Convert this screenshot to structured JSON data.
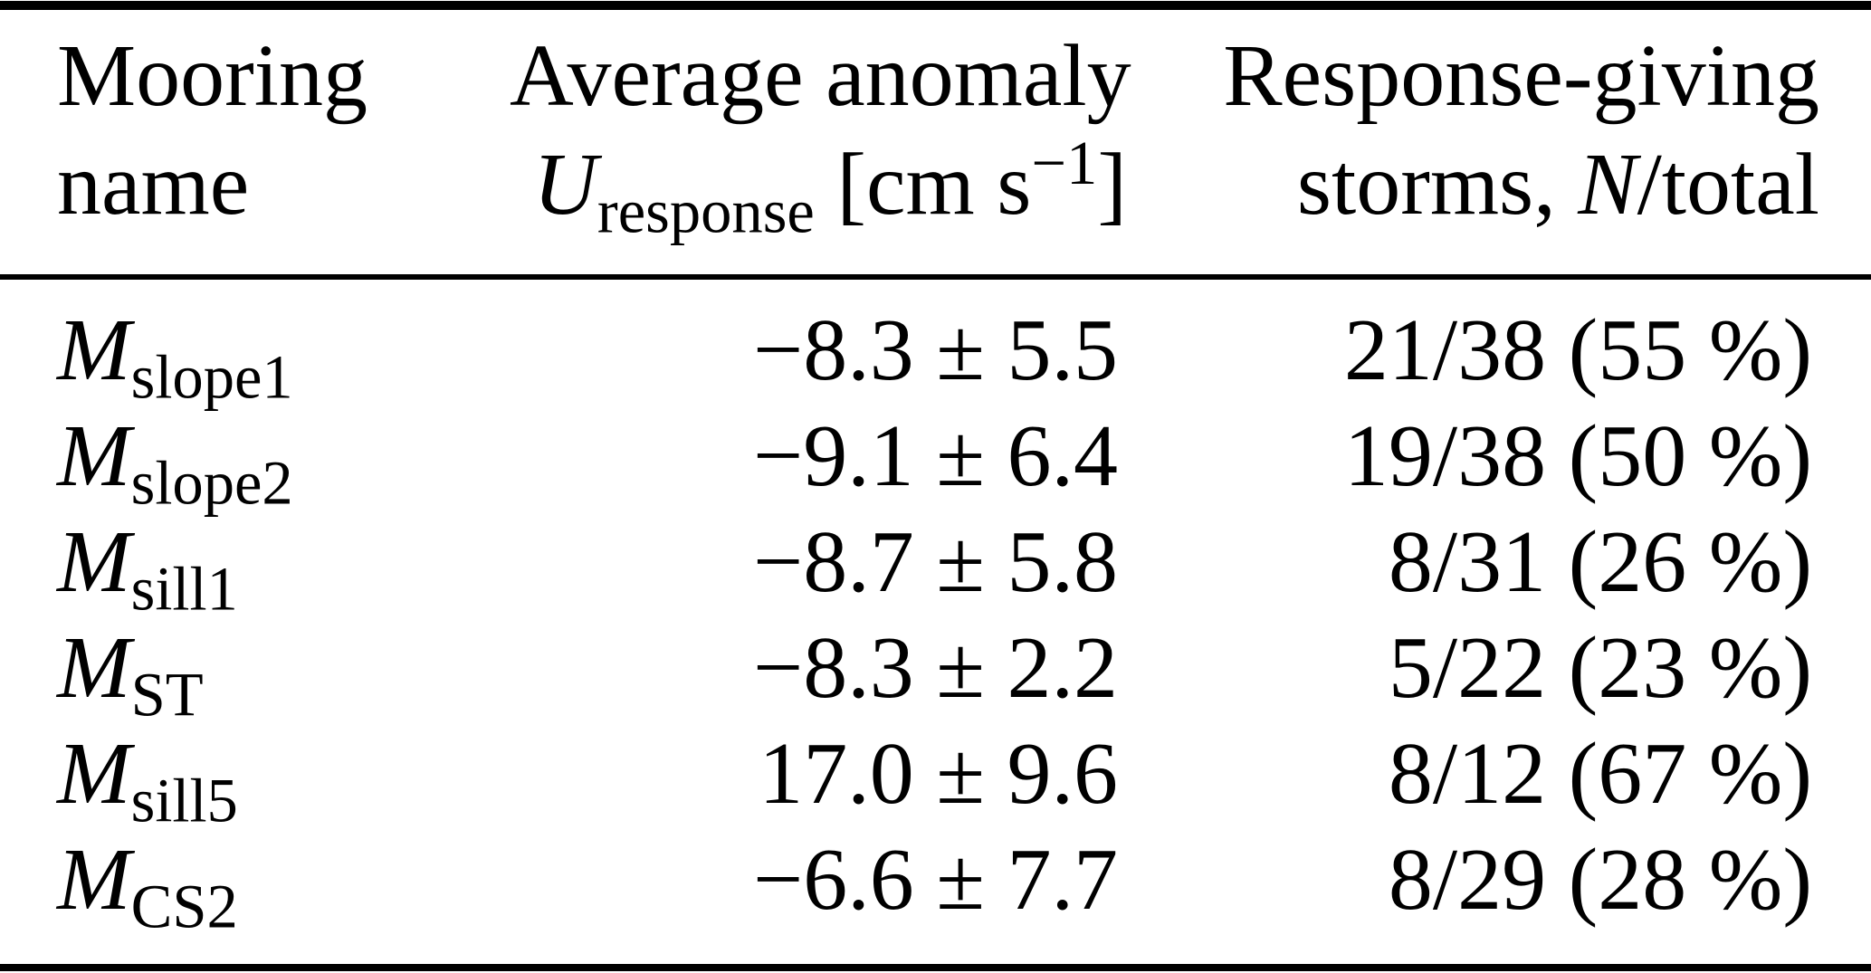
{
  "colors": {
    "text": "#000000",
    "background": "#ffffff",
    "rule": "#000000"
  },
  "header": {
    "col1": {
      "line1": "Mooring",
      "line2": "name"
    },
    "col2": {
      "line1": "Average anomaly",
      "u_symbol": "U",
      "u_subscript": "response",
      "unit_prefix": " [cm s",
      "unit_superscript": "−1",
      "unit_suffix": "]"
    },
    "col3": {
      "line1": "Response-giving",
      "line2_prefix": "storms, ",
      "n_symbol": "N",
      "line2_suffix": "/total"
    }
  },
  "table": {
    "rows": [
      {
        "symbol": "M",
        "sub": "slope1",
        "anomaly": "−8.3 ± 5.5",
        "storms": "21/38 (55 %)"
      },
      {
        "symbol": "M",
        "sub": "slope2",
        "anomaly": "−9.1 ± 6.4",
        "storms": "19/38 (50 %)"
      },
      {
        "symbol": "M",
        "sub": "sill1",
        "anomaly": "−8.7 ± 5.8",
        "storms": "8/31 (26 %)"
      },
      {
        "symbol": "M",
        "sub": "ST",
        "anomaly": "−8.3 ± 2.2",
        "storms": "5/22 (23 %)"
      },
      {
        "symbol": "M",
        "sub": "sill5",
        "anomaly": "17.0 ± 9.6",
        "storms": "8/12 (67 %)"
      },
      {
        "symbol": "M",
        "sub": "CS2",
        "anomaly": "−6.6 ± 7.7",
        "storms": "8/29 (28 %)"
      }
    ]
  },
  "chart_data": {
    "type": "table",
    "title": "",
    "headers": [
      "Mooring name",
      "Average anomaly U_response [cm s^−1]",
      "Response-giving storms, N/total"
    ],
    "rows": [
      [
        "M_slope1",
        "−8.3 ± 5.5",
        "21/38 (55 %)"
      ],
      [
        "M_slope2",
        "−9.1 ± 6.4",
        "19/38 (50 %)"
      ],
      [
        "M_sill1",
        "−8.7 ± 5.8",
        "8/31 (26 %)"
      ],
      [
        "M_ST",
        "−8.3 ± 2.2",
        "5/22 (23 %)"
      ],
      [
        "M_sill5",
        "17.0 ± 9.6",
        "8/12 (67 %)"
      ],
      [
        "M_CS2",
        "−6.6 ± 7.7",
        "8/29 (28 %)"
      ]
    ]
  }
}
